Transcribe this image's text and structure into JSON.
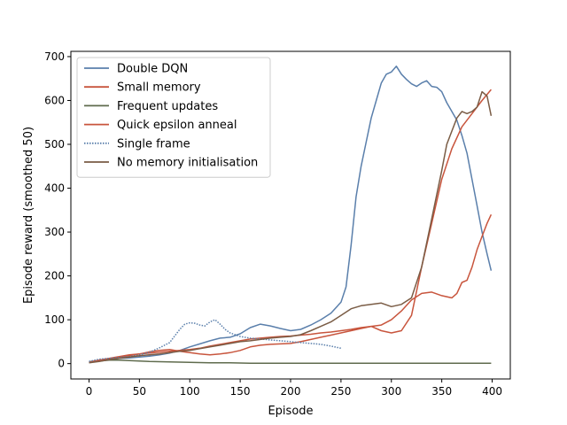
{
  "chart_data": {
    "type": "line",
    "title": "",
    "xlabel": "Episode",
    "ylabel": "Episode reward (smoothed 50)",
    "xlim": [
      -18,
      418
    ],
    "ylim": [
      -35,
      712
    ],
    "xticks": [
      0,
      50,
      100,
      150,
      200,
      250,
      300,
      350,
      400
    ],
    "yticks": [
      0,
      100,
      200,
      300,
      400,
      500,
      600,
      700
    ],
    "grid": false,
    "legend_position": "top-left",
    "series": [
      {
        "name": "Double DQN",
        "color": "#5a7fab",
        "style": "solid",
        "x": [
          0,
          10,
          20,
          30,
          40,
          50,
          60,
          70,
          80,
          90,
          100,
          110,
          120,
          130,
          140,
          150,
          160,
          170,
          180,
          190,
          200,
          210,
          220,
          230,
          240,
          250,
          255,
          260,
          265,
          270,
          275,
          280,
          285,
          290,
          295,
          300,
          305,
          310,
          315,
          320,
          325,
          330,
          335,
          340,
          345,
          350,
          355,
          360,
          365,
          370,
          375,
          380,
          385,
          390,
          395,
          399
        ],
        "y": [
          3,
          6,
          9,
          12,
          13,
          15,
          17,
          20,
          24,
          30,
          38,
          45,
          52,
          58,
          60,
          68,
          82,
          90,
          86,
          80,
          75,
          78,
          88,
          100,
          115,
          140,
          175,
          270,
          380,
          450,
          505,
          560,
          600,
          640,
          660,
          665,
          678,
          660,
          648,
          638,
          632,
          640,
          645,
          632,
          630,
          620,
          595,
          575,
          555,
          520,
          480,
          420,
          360,
          300,
          250,
          212
        ]
      },
      {
        "name": "Small memory",
        "color": "#c8553d",
        "style": "solid",
        "x": [
          0,
          10,
          20,
          30,
          40,
          50,
          60,
          70,
          80,
          90,
          100,
          110,
          120,
          130,
          140,
          150,
          160,
          170,
          180,
          190,
          200,
          210,
          220,
          230,
          240,
          250,
          260,
          270,
          280,
          290,
          300,
          310,
          320,
          330,
          340,
          350,
          360,
          365,
          370,
          375,
          380,
          385,
          390,
          395,
          399
        ],
        "y": [
          4,
          8,
          12,
          16,
          20,
          22,
          24,
          26,
          28,
          30,
          32,
          35,
          40,
          44,
          48,
          52,
          56,
          58,
          60,
          62,
          63,
          65,
          67,
          70,
          72,
          75,
          78,
          82,
          85,
          88,
          100,
          120,
          145,
          160,
          163,
          155,
          150,
          160,
          185,
          190,
          220,
          260,
          290,
          320,
          340
        ]
      },
      {
        "name": "Frequent updates",
        "color": "#5f6b4d",
        "style": "solid",
        "x": [
          0,
          10,
          20,
          30,
          40,
          50,
          60,
          80,
          100,
          120,
          140,
          160,
          180,
          200,
          220,
          240,
          260,
          280,
          300,
          320,
          340,
          360,
          380,
          399
        ],
        "y": [
          4,
          6,
          8,
          8,
          7,
          6,
          5,
          4,
          3,
          2,
          2,
          1,
          1,
          1,
          1,
          1,
          1,
          1,
          1,
          1,
          1,
          1,
          1,
          1
        ]
      },
      {
        "name": "Quick epsilon anneal",
        "color": "#c8553d",
        "style": "solid",
        "x": [
          0,
          10,
          20,
          30,
          40,
          50,
          60,
          70,
          80,
          90,
          100,
          110,
          120,
          130,
          140,
          150,
          160,
          170,
          180,
          190,
          200,
          210,
          220,
          230,
          240,
          250,
          260,
          270,
          280,
          290,
          300,
          310,
          320,
          330,
          340,
          350,
          360,
          370,
          380,
          390,
          399
        ],
        "y": [
          3,
          7,
          11,
          14,
          18,
          22,
          27,
          30,
          32,
          28,
          25,
          22,
          20,
          22,
          25,
          30,
          38,
          42,
          44,
          45,
          46,
          50,
          55,
          60,
          65,
          70,
          75,
          80,
          85,
          75,
          70,
          75,
          110,
          220,
          320,
          420,
          490,
          540,
          570,
          600,
          625
        ]
      },
      {
        "name": "Single frame",
        "color": "#5a7fab",
        "style": "dotted",
        "x": [
          0,
          10,
          20,
          30,
          40,
          50,
          60,
          70,
          80,
          90,
          95,
          100,
          105,
          110,
          115,
          120,
          125,
          130,
          135,
          140,
          150,
          160,
          170,
          180,
          190,
          200,
          210,
          220,
          230,
          240,
          250
        ],
        "y": [
          5,
          10,
          12,
          14,
          16,
          20,
          26,
          36,
          48,
          78,
          90,
          93,
          92,
          88,
          86,
          95,
          100,
          90,
          78,
          70,
          62,
          58,
          56,
          54,
          52,
          50,
          48,
          46,
          44,
          40,
          35
        ]
      },
      {
        "name": "No memory initialisation",
        "color": "#7a5c45",
        "style": "solid",
        "x": [
          0,
          10,
          20,
          30,
          40,
          50,
          60,
          70,
          80,
          90,
          100,
          110,
          120,
          130,
          140,
          150,
          160,
          170,
          180,
          190,
          200,
          210,
          220,
          230,
          240,
          250,
          260,
          270,
          280,
          290,
          300,
          310,
          320,
          330,
          340,
          350,
          355,
          360,
          365,
          370,
          375,
          380,
          385,
          390,
          395,
          399
        ],
        "y": [
          2,
          5,
          9,
          12,
          15,
          18,
          20,
          22,
          25,
          28,
          30,
          34,
          38,
          42,
          46,
          50,
          52,
          55,
          58,
          60,
          62,
          66,
          75,
          85,
          95,
          110,
          125,
          132,
          135,
          138,
          130,
          135,
          150,
          220,
          330,
          440,
          500,
          530,
          560,
          575,
          570,
          575,
          585,
          620,
          610,
          565
        ]
      }
    ]
  }
}
